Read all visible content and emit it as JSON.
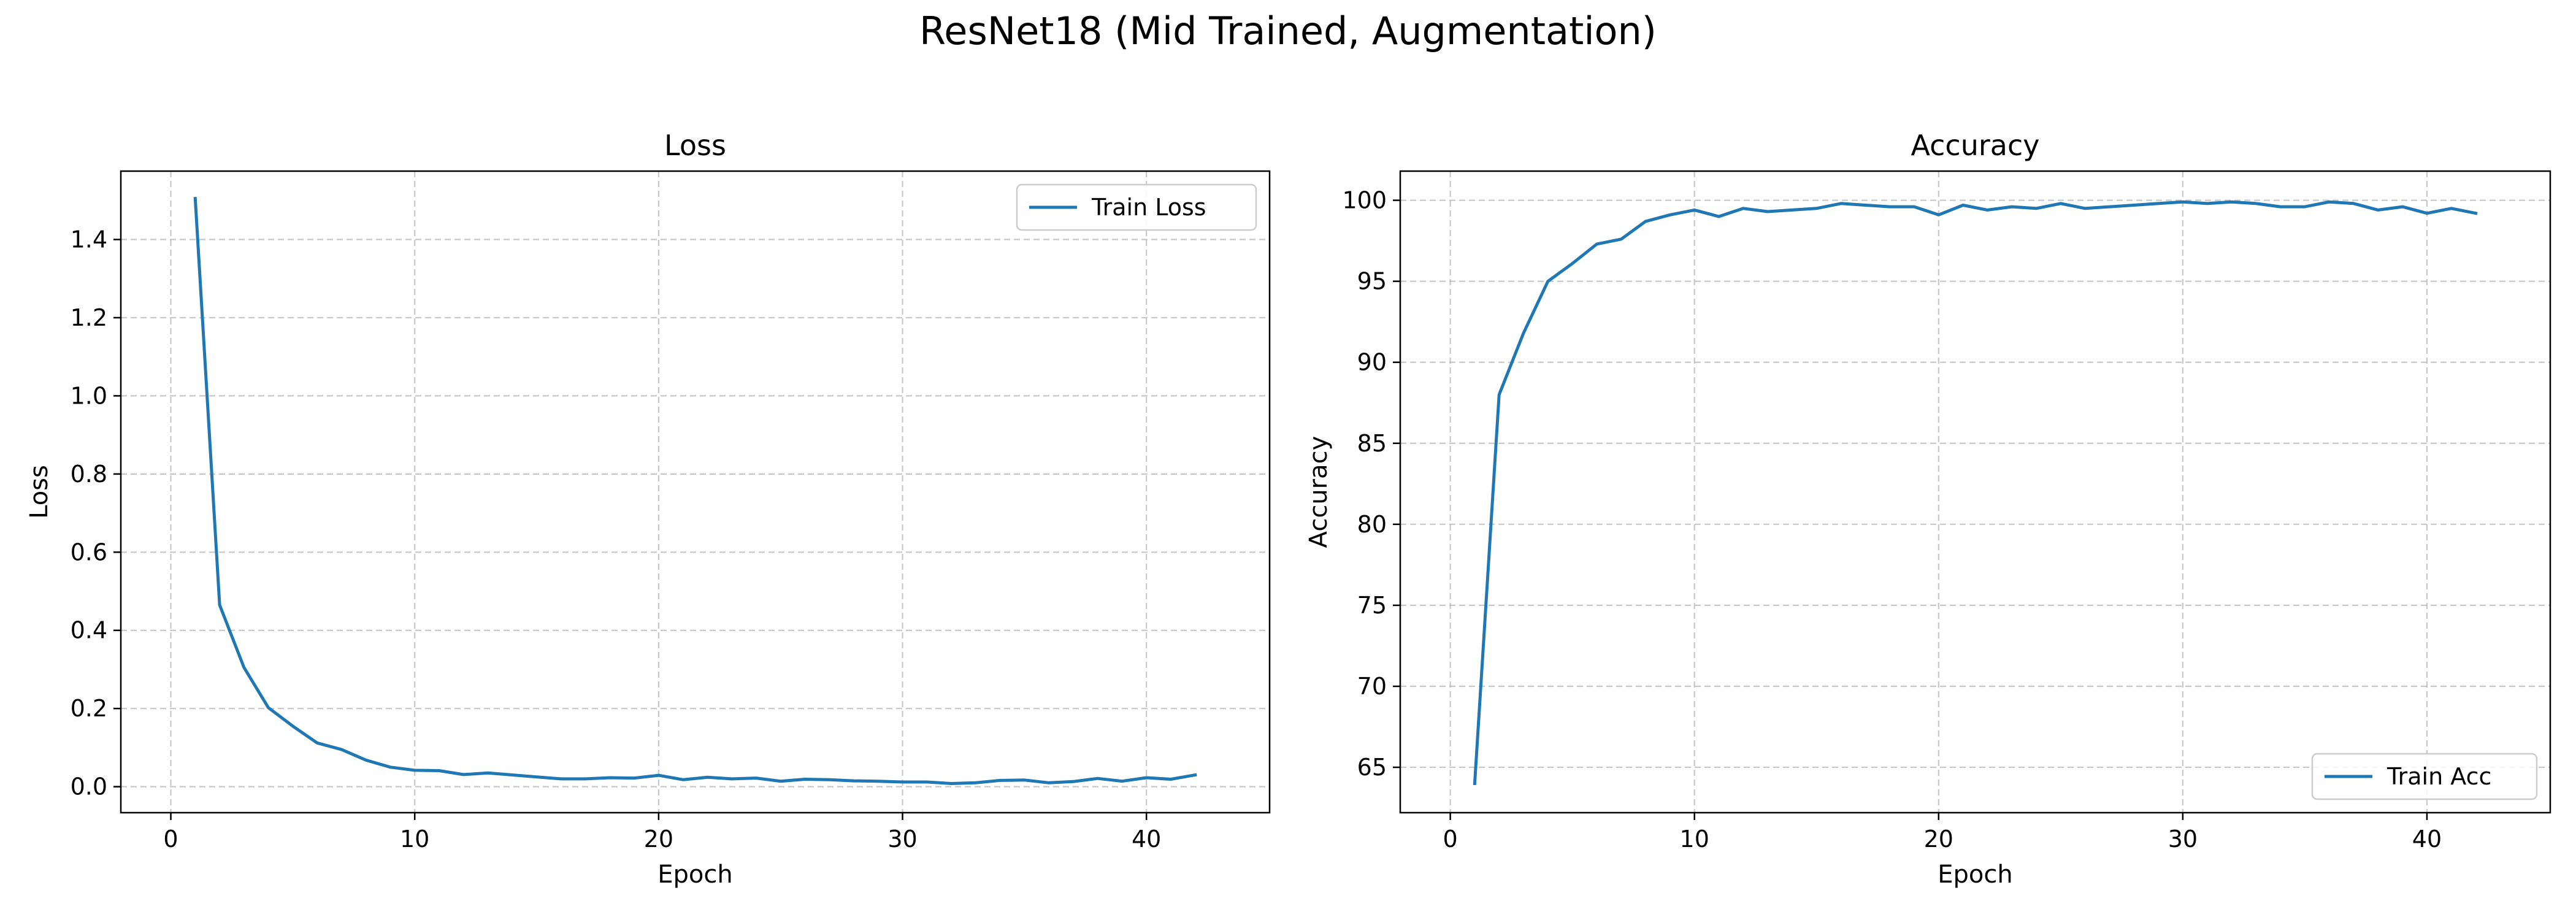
{
  "figure": {
    "title": "ResNet18 (Mid Trained, Augmentation)"
  },
  "colors": {
    "series": "#1f77b4",
    "grid": "#b0b0b0",
    "axes": "#000000",
    "legend_border": "#cccccc"
  },
  "chart_data": [
    {
      "type": "line",
      "title": "Loss",
      "xlabel": "Epoch",
      "ylabel": "Loss",
      "xlim": [
        -2.05,
        45.05
      ],
      "ylim": [
        -0.0665,
        1.575
      ],
      "xticks": [
        0,
        10,
        20,
        30,
        40
      ],
      "yticks": [
        0.0,
        0.2,
        0.4,
        0.6,
        0.8,
        1.0,
        1.2,
        1.4
      ],
      "ytick_labels": [
        "0.0",
        "0.2",
        "0.4",
        "0.6",
        "0.8",
        "1.0",
        "1.2",
        "1.4"
      ],
      "grid": true,
      "grid_style": "dashed",
      "legend_position": "upper right",
      "series": [
        {
          "name": "Train Loss",
          "x": [
            1,
            2,
            3,
            4,
            5,
            6,
            7,
            8,
            9,
            10,
            11,
            12,
            13,
            14,
            15,
            16,
            17,
            18,
            19,
            20,
            21,
            22,
            23,
            24,
            25,
            26,
            27,
            28,
            29,
            30,
            31,
            32,
            33,
            34,
            35,
            36,
            37,
            38,
            39,
            40,
            41,
            42
          ],
          "y": [
            1.505,
            0.465,
            0.305,
            0.202,
            0.155,
            0.112,
            0.095,
            0.068,
            0.05,
            0.042,
            0.041,
            0.031,
            0.035,
            0.03,
            0.025,
            0.02,
            0.02,
            0.023,
            0.022,
            0.029,
            0.018,
            0.024,
            0.02,
            0.022,
            0.014,
            0.019,
            0.018,
            0.015,
            0.014,
            0.012,
            0.012,
            0.008,
            0.01,
            0.016,
            0.017,
            0.01,
            0.013,
            0.021,
            0.014,
            0.023,
            0.019,
            0.03
          ]
        }
      ]
    },
    {
      "type": "line",
      "title": "Accuracy",
      "xlabel": "Epoch",
      "ylabel": "Accuracy",
      "xlim": [
        -2.05,
        45.05
      ],
      "ylim": [
        62.2,
        101.8
      ],
      "xticks": [
        0,
        10,
        20,
        30,
        40
      ],
      "yticks": [
        65,
        70,
        75,
        80,
        85,
        90,
        95,
        100
      ],
      "ytick_labels": [
        "65",
        "70",
        "75",
        "80",
        "85",
        "90",
        "95",
        "100"
      ],
      "grid": true,
      "grid_style": "dashed",
      "legend_position": "lower right",
      "series": [
        {
          "name": "Train Acc",
          "x": [
            1,
            2,
            3,
            4,
            5,
            6,
            7,
            8,
            9,
            10,
            11,
            12,
            13,
            14,
            15,
            16,
            17,
            18,
            19,
            20,
            21,
            22,
            23,
            24,
            25,
            26,
            27,
            28,
            29,
            30,
            31,
            32,
            33,
            34,
            35,
            36,
            37,
            38,
            39,
            40,
            41,
            42
          ],
          "y": [
            64.0,
            88.0,
            91.8,
            95.0,
            96.1,
            97.3,
            97.6,
            98.7,
            99.1,
            99.4,
            99.0,
            99.5,
            99.3,
            99.4,
            99.5,
            99.8,
            99.7,
            99.6,
            99.6,
            99.1,
            99.7,
            99.4,
            99.6,
            99.5,
            99.8,
            99.5,
            99.6,
            99.7,
            99.8,
            99.9,
            99.8,
            99.9,
            99.8,
            99.6,
            99.6,
            99.9,
            99.8,
            99.4,
            99.6,
            99.2,
            99.5,
            99.2
          ]
        }
      ]
    }
  ]
}
